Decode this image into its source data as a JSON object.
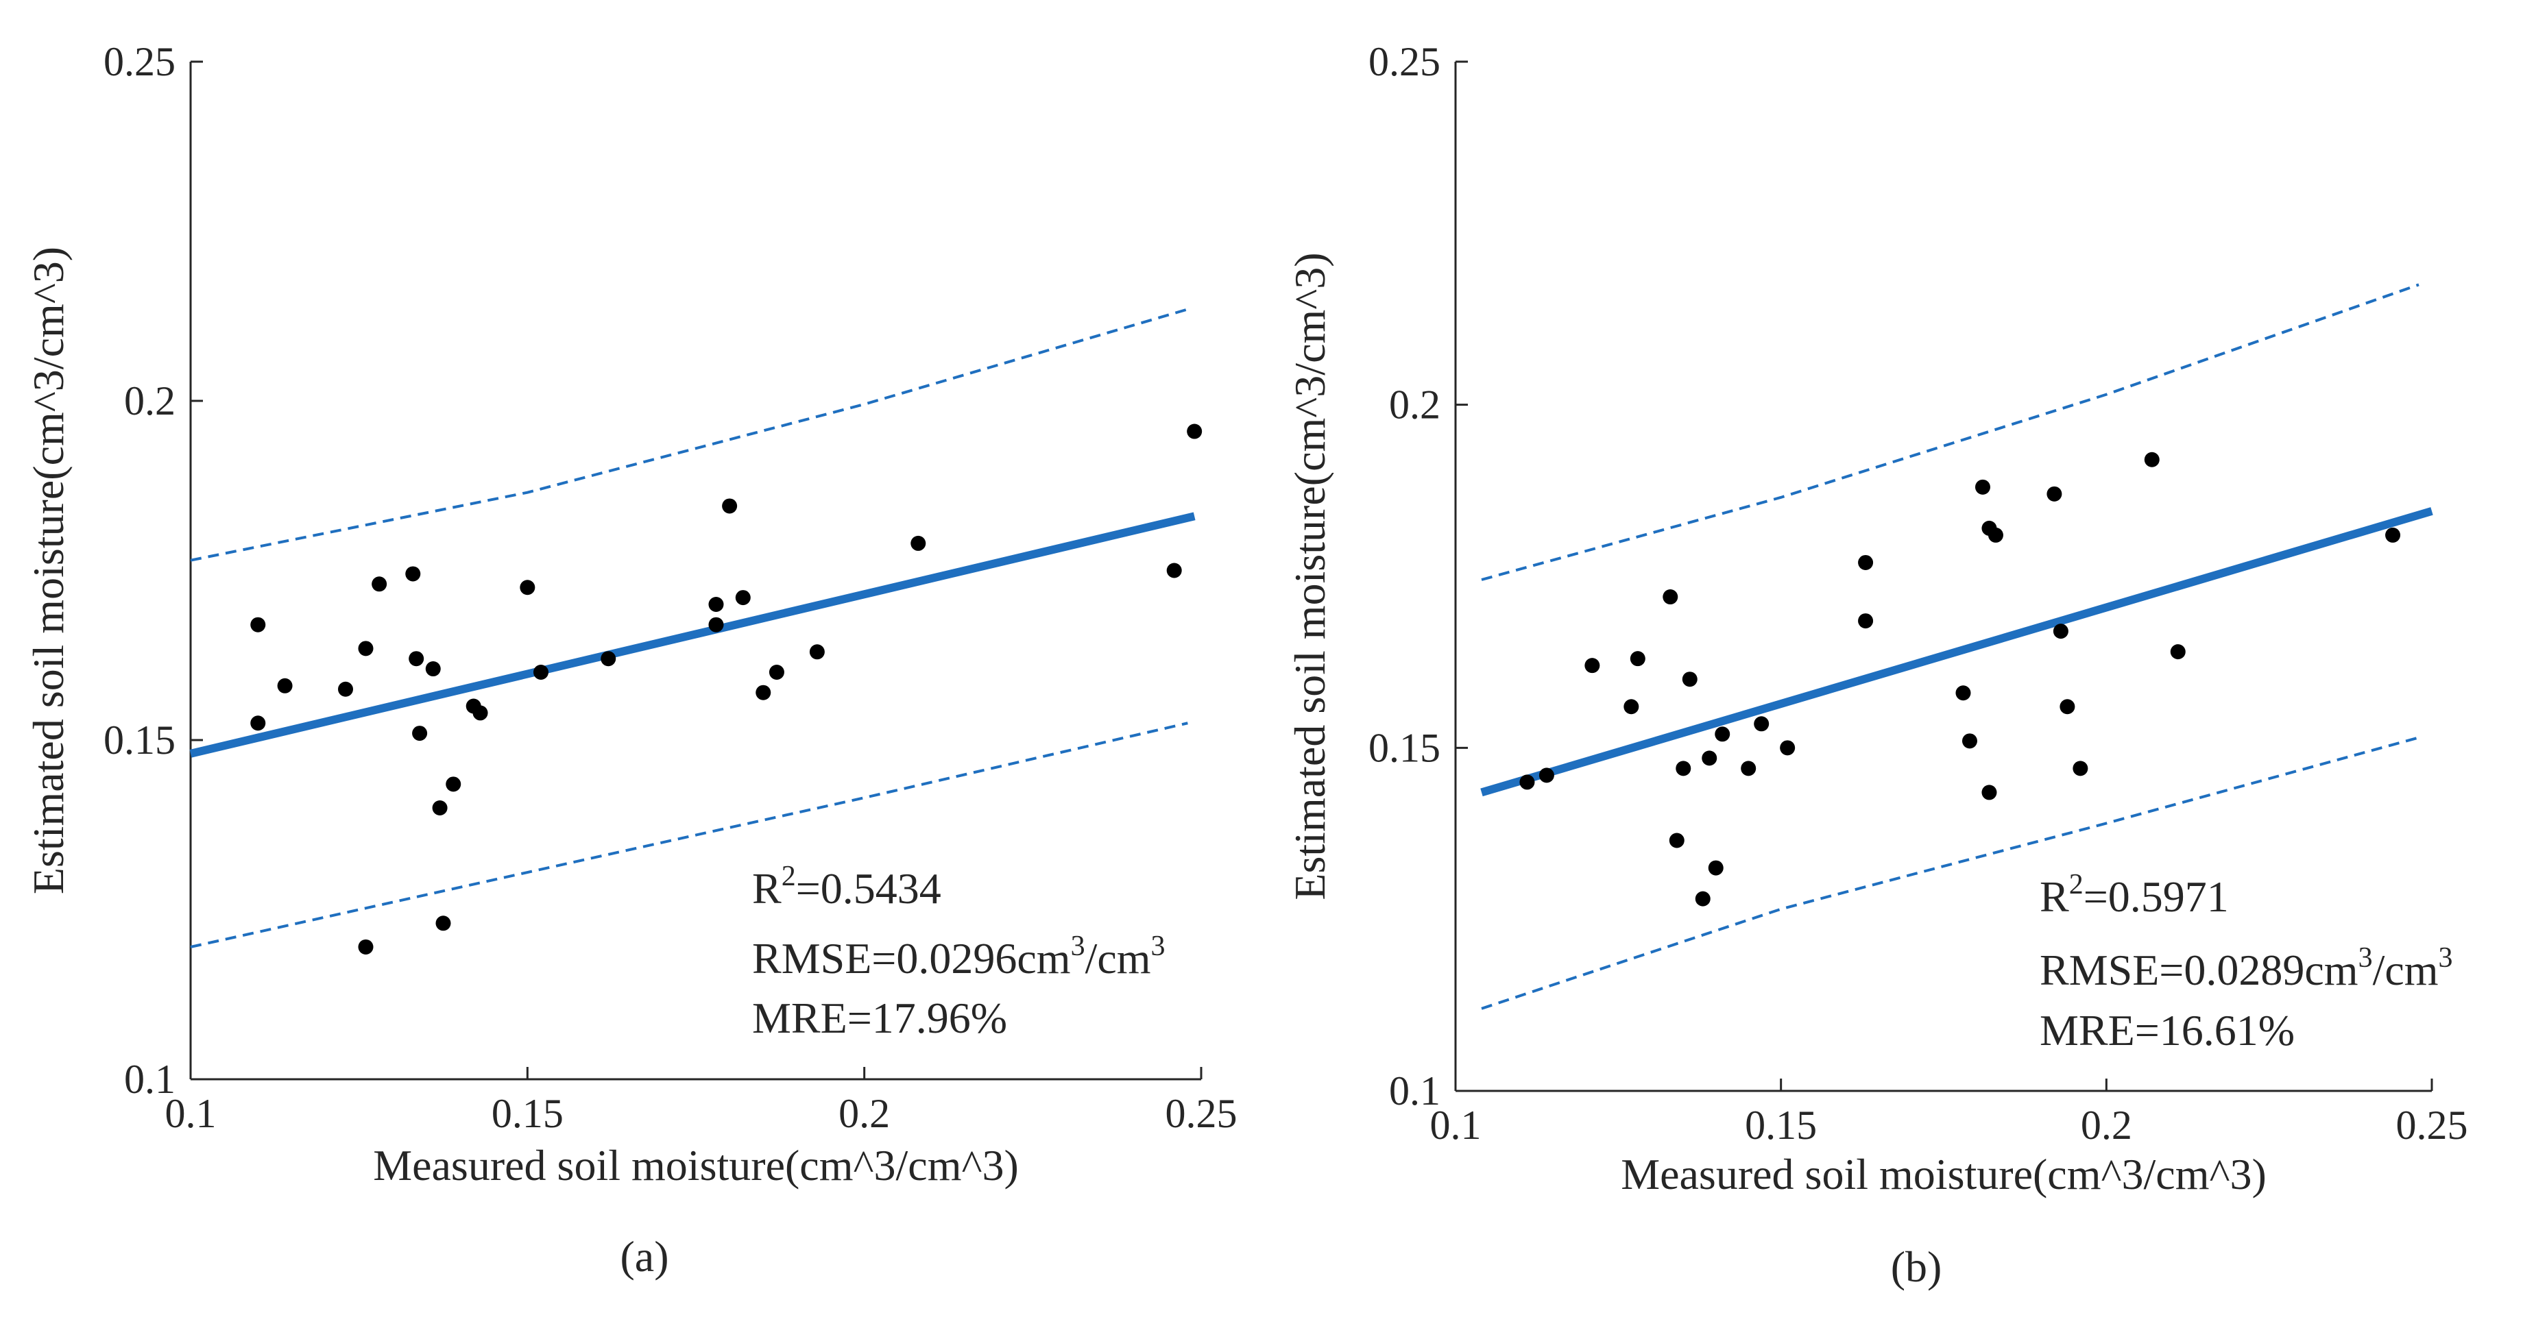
{
  "chart_data": [
    {
      "type": "scatter",
      "panel_label": "(a)",
      "xlabel": "Measured soil moisture(cm^3/cm^3)",
      "ylabel": "Estimated soil moisture(cm^3/cm^3)",
      "xlim": [
        0.1,
        0.25
      ],
      "ylim": [
        0.1,
        0.25
      ],
      "xticks": [
        "0.1",
        "0.15",
        "0.2",
        "0.25"
      ],
      "yticks": [
        "0.1",
        "0.15",
        "0.2",
        "0.25"
      ],
      "grid": false,
      "point_color": "#000000",
      "line_color": "#1f6fbf",
      "points": [
        [
          0.11,
          0.167
        ],
        [
          0.11,
          0.1525
        ],
        [
          0.114,
          0.158
        ],
        [
          0.123,
          0.1575
        ],
        [
          0.126,
          0.1635
        ],
        [
          0.126,
          0.1195
        ],
        [
          0.128,
          0.173
        ],
        [
          0.133,
          0.1745
        ],
        [
          0.1335,
          0.162
        ],
        [
          0.134,
          0.151
        ],
        [
          0.136,
          0.1605
        ],
        [
          0.137,
          0.14
        ],
        [
          0.1375,
          0.123
        ],
        [
          0.139,
          0.1435
        ],
        [
          0.142,
          0.155
        ],
        [
          0.143,
          0.154
        ],
        [
          0.15,
          0.1725
        ],
        [
          0.152,
          0.16
        ],
        [
          0.162,
          0.162
        ],
        [
          0.178,
          0.17
        ],
        [
          0.178,
          0.167
        ],
        [
          0.18,
          0.1845
        ],
        [
          0.182,
          0.171
        ],
        [
          0.185,
          0.157
        ],
        [
          0.187,
          0.16
        ],
        [
          0.193,
          0.163
        ],
        [
          0.208,
          0.179
        ],
        [
          0.246,
          0.175
        ],
        [
          0.249,
          0.1955
        ]
      ],
      "fit_line": [
        [
          0.1,
          0.148
        ],
        [
          0.249,
          0.183
        ]
      ],
      "upper_bound": [
        [
          0.1,
          0.1765
        ],
        [
          0.15,
          0.1865
        ],
        [
          0.2,
          0.1995
        ],
        [
          0.248,
          0.2135
        ]
      ],
      "lower_bound": [
        [
          0.1,
          0.1195
        ],
        [
          0.15,
          0.1305
        ],
        [
          0.2,
          0.1415
        ],
        [
          0.248,
          0.1525
        ]
      ],
      "stats": {
        "r2_prefix": "R",
        "r2_sup": "2",
        "r2_value": "=0.5434",
        "rmse_text": "RMSE=0.0296cm",
        "rmse_sup": "3",
        "rmse_suffix": "/cm",
        "rmse_sup2": "3",
        "mre_text": "MRE=17.96%"
      }
    },
    {
      "type": "scatter",
      "panel_label": "(b)",
      "xlabel": "Measured soil moisture(cm^3/cm^3)",
      "ylabel": "Estimated soil moisture(cm^3/cm^3)",
      "xlim": [
        0.1,
        0.25
      ],
      "ylim": [
        0.1,
        0.25
      ],
      "xticks": [
        "0.1",
        "0.15",
        "0.2",
        "0.25"
      ],
      "yticks": [
        "0.1",
        "0.15",
        "0.2",
        "0.25"
      ],
      "grid": false,
      "point_color": "#000000",
      "line_color": "#1f6fbf",
      "points": [
        [
          0.111,
          0.145
        ],
        [
          0.114,
          0.146
        ],
        [
          0.121,
          0.162
        ],
        [
          0.127,
          0.156
        ],
        [
          0.128,
          0.163
        ],
        [
          0.133,
          0.172
        ],
        [
          0.134,
          0.1365
        ],
        [
          0.135,
          0.147
        ],
        [
          0.136,
          0.16
        ],
        [
          0.138,
          0.128
        ],
        [
          0.139,
          0.1485
        ],
        [
          0.14,
          0.1325
        ],
        [
          0.141,
          0.152
        ],
        [
          0.145,
          0.147
        ],
        [
          0.147,
          0.1535
        ],
        [
          0.151,
          0.15
        ],
        [
          0.163,
          0.1685
        ],
        [
          0.163,
          0.177
        ],
        [
          0.178,
          0.158
        ],
        [
          0.179,
          0.151
        ],
        [
          0.181,
          0.188
        ],
        [
          0.182,
          0.182
        ],
        [
          0.182,
          0.1435
        ],
        [
          0.183,
          0.181
        ],
        [
          0.192,
          0.187
        ],
        [
          0.193,
          0.167
        ],
        [
          0.194,
          0.156
        ],
        [
          0.196,
          0.147
        ],
        [
          0.207,
          0.192
        ],
        [
          0.211,
          0.164
        ],
        [
          0.244,
          0.181
        ]
      ],
      "fit_line": [
        [
          0.104,
          0.1435
        ],
        [
          0.25,
          0.1845
        ]
      ],
      "upper_bound": [
        [
          0.104,
          0.1745
        ],
        [
          0.15,
          0.1865
        ],
        [
          0.2,
          0.2015
        ],
        [
          0.248,
          0.2175
        ]
      ],
      "lower_bound": [
        [
          0.104,
          0.112
        ],
        [
          0.15,
          0.1265
        ],
        [
          0.2,
          0.139
        ],
        [
          0.248,
          0.1515
        ]
      ],
      "stats": {
        "r2_prefix": "R",
        "r2_sup": "2",
        "r2_value": "=0.5971",
        "rmse_text": "RMSE=0.0289cm",
        "rmse_sup": "3",
        "rmse_suffix": "/cm",
        "rmse_sup2": "3",
        "mre_text": "MRE=16.61%"
      }
    }
  ]
}
